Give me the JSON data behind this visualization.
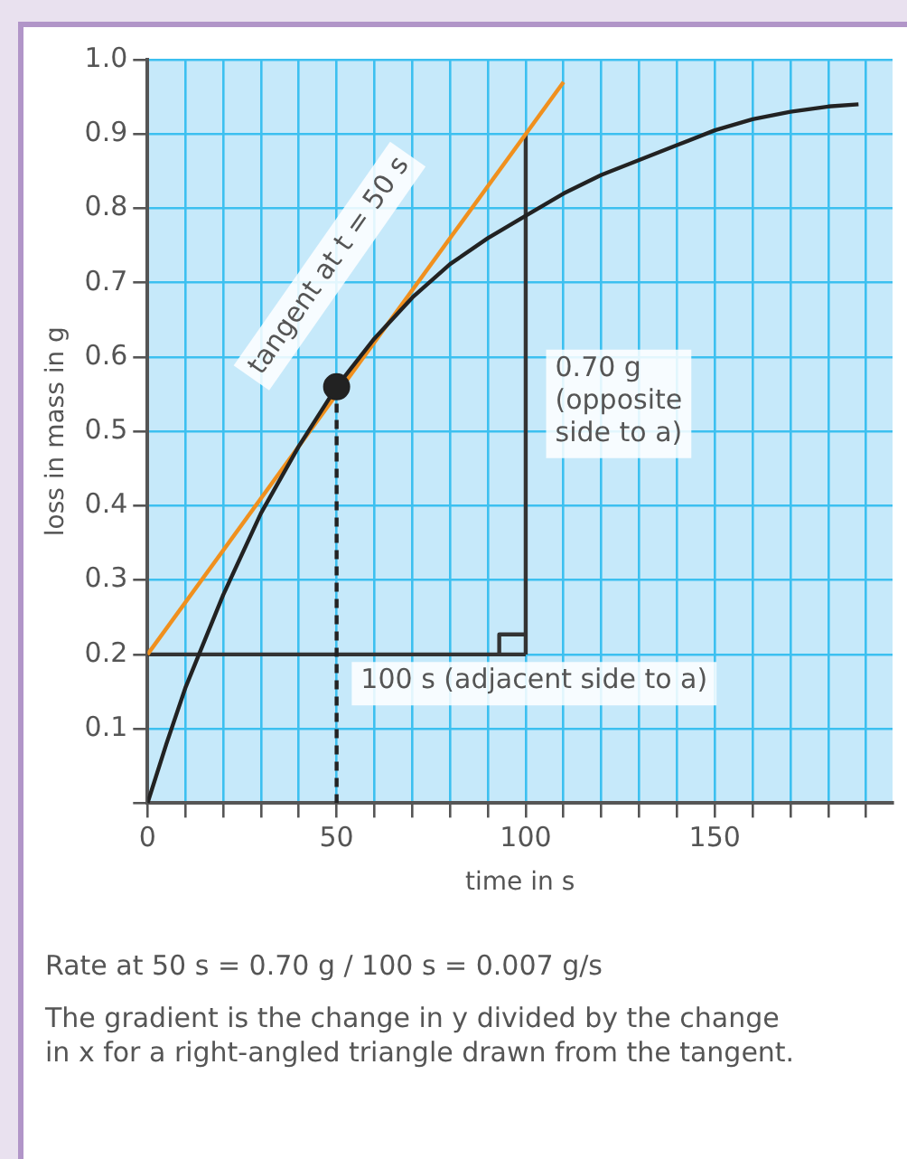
{
  "chart_data": {
    "type": "line",
    "xlabel": "time in s",
    "ylabel": "loss in mass in g",
    "xlim": [
      0,
      197
    ],
    "ylim": [
      0,
      1
    ],
    "xticks": [
      {
        "value": 0,
        "label": "0"
      },
      {
        "value": 10,
        "label": null
      },
      {
        "value": 20,
        "label": null
      },
      {
        "value": 30,
        "label": null
      },
      {
        "value": 40,
        "label": null
      },
      50,
      {
        "value": 60,
        "label": null
      },
      {
        "value": 70,
        "label": null
      },
      {
        "value": 80,
        "label": null
      },
      {
        "value": 90,
        "label": null
      },
      100,
      {
        "value": 110,
        "label": null
      },
      {
        "value": 120,
        "label": null
      },
      {
        "value": 130,
        "label": null
      },
      {
        "value": 140,
        "label": null
      },
      150,
      {
        "value": 160,
        "label": null
      },
      {
        "value": 170,
        "label": null
      },
      {
        "value": 180,
        "label": null
      },
      {
        "value": 190,
        "label": null
      }
    ],
    "yticks": [
      {
        "value": 0,
        "label": null
      },
      0.1,
      0.2,
      0.3,
      0.4,
      0.5,
      0.6,
      0.7,
      0.8,
      0.9,
      {
        "value": 1,
        "label": "1.0"
      }
    ],
    "grid": true,
    "legend": false,
    "marker": "none",
    "line_style": "solid",
    "series": [
      {
        "color": "#222222",
        "x": [
          0,
          5,
          10,
          20,
          30,
          40,
          50,
          60,
          70,
          80,
          90,
          100,
          110,
          120,
          130,
          140,
          150,
          160,
          170,
          180,
          188
        ],
        "values": [
          0,
          0.08,
          0.155,
          0.28,
          0.39,
          0.48,
          0.56,
          0.625,
          0.68,
          0.725,
          0.76,
          0.79,
          0.82,
          0.845,
          0.865,
          0.885,
          0.905,
          0.92,
          0.93,
          0.937,
          0.94
        ]
      },
      {
        "color": "#f0901e",
        "x": [
          0,
          110
        ],
        "values": [
          0.2,
          0.97
        ]
      },
      {
        "color": "#222222",
        "x": [
          50,
          50
        ],
        "values": [
          0,
          0.56
        ],
        "line_style": "dashed"
      },
      {
        "color": "#333333",
        "x": [
          0,
          100
        ],
        "values": [
          0.2,
          0.2
        ]
      },
      {
        "color": "#333333",
        "x": [
          100,
          100
        ],
        "values": [
          0.2,
          0.9
        ]
      },
      {
        "color": "#333333",
        "x": [
          93,
          93,
          100
        ],
        "values": [
          0.2,
          0.227,
          0.227
        ]
      },
      {
        "type": "scatter",
        "color": "#222222",
        "marker": "circle",
        "x": [
          50
        ],
        "values": [
          0.56
        ]
      }
    ],
    "annotations": [
      "tangent at t = 50 s",
      "0.70 g (opposite side to a)",
      {
        "text": "100 s (adjacent side to a)",
        "x": 54,
        "y": 0.19
      },
      "Rate at 50 s = 0.70 g / 100 s = 0.007 g/s",
      "The gradient is the change in y divided by the change in x for a right-angled triangle drawn from the tangent."
    ]
  }
}
